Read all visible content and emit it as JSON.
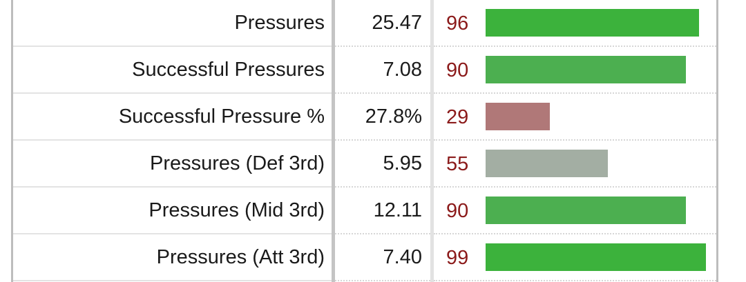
{
  "rows": [
    {
      "label": "Pressures",
      "value": "25.47",
      "percentile": "96",
      "percentile_value": 96,
      "bar_color": "#3cb23c"
    },
    {
      "label": "Successful Pressures",
      "value": "7.08",
      "percentile": "90",
      "percentile_value": 90,
      "bar_color": "#4caf50"
    },
    {
      "label": "Successful Pressure %",
      "value": "27.8%",
      "percentile": "29",
      "percentile_value": 29,
      "bar_color": "#b07878"
    },
    {
      "label": "Pressures (Def 3rd)",
      "value": "5.95",
      "percentile": "55",
      "percentile_value": 55,
      "bar_color": "#a3aea3"
    },
    {
      "label": "Pressures (Mid 3rd)",
      "value": "12.11",
      "percentile": "90",
      "percentile_value": 90,
      "bar_color": "#4caf50"
    },
    {
      "label": "Pressures (Att 3rd)",
      "value": "7.40",
      "percentile": "99",
      "percentile_value": 99,
      "bar_color": "#3cb23c"
    }
  ]
}
